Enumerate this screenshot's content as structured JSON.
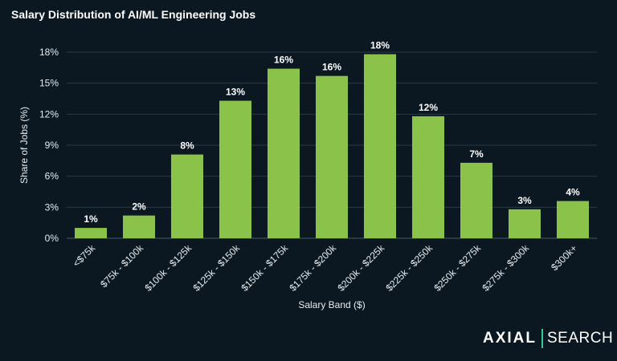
{
  "chart_data": {
    "type": "bar",
    "title": "Salary Distribution of AI/ML Engineering Jobs",
    "xlabel": "Salary Band ($)",
    "ylabel": "Share of Jobs (%)",
    "categories": [
      "<$75k",
      "$75k - $100k",
      "$100k - $125k",
      "$125k - $150k",
      "$150k - $175k",
      "$175k - $200k",
      "$200k - $225k",
      "$225k - $250k",
      "$250k - $275k",
      "$275k - $300k",
      "$300k+"
    ],
    "values": [
      1.0,
      2.2,
      8.1,
      13.3,
      16.4,
      15.7,
      17.8,
      11.8,
      7.3,
      2.8,
      3.6
    ],
    "data_labels": [
      "1%",
      "2%",
      "8%",
      "13%",
      "16%",
      "16%",
      "18%",
      "12%",
      "7%",
      "3%",
      "4%"
    ],
    "ylim": [
      0,
      18
    ],
    "yticks": [
      "0%",
      "3%",
      "6%",
      "9%",
      "12%",
      "15%",
      "18%"
    ],
    "grid": true,
    "legend": "none",
    "colors": {
      "bar": "#8bc34a",
      "background": "#0b1822",
      "grid": "#2a3a45",
      "accent": "#2ecc8f"
    }
  },
  "logo": {
    "brand": "AXIAL",
    "product": "SEARCH"
  }
}
